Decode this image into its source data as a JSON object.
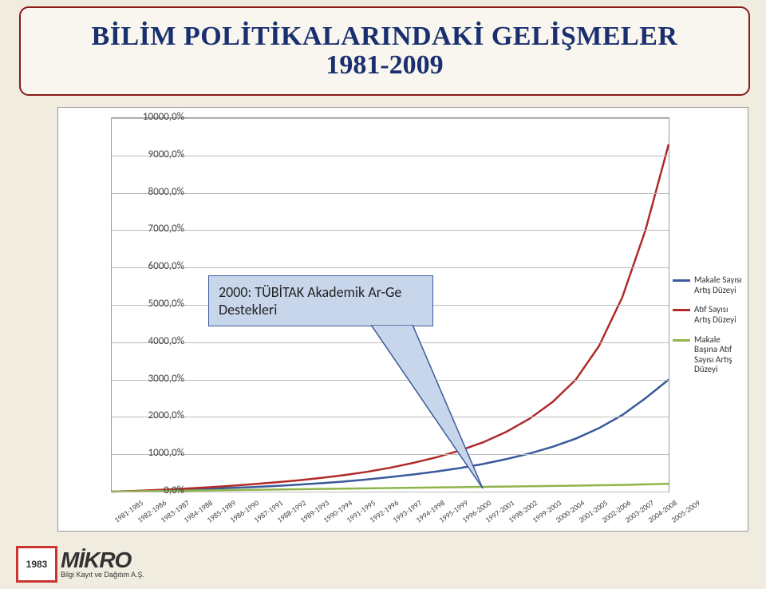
{
  "title": {
    "line1": "BİLİM POLİTİKALARINDAKİ GELİŞMELER",
    "line2": "1981-2009"
  },
  "chart": {
    "type": "line",
    "background_color": "#ffffff",
    "grid_color": "#bbbbbb",
    "plot_border_color": "#999999",
    "ylim": [
      0,
      10000
    ],
    "ytick_step": 1000,
    "y_suffix": ",0%",
    "y_labels": [
      "0,0%",
      "1000,0%",
      "2000,0%",
      "3000,0%",
      "4000,0%",
      "5000,0%",
      "6000,0%",
      "7000,0%",
      "8000,0%",
      "9000,0%",
      "10000,0%"
    ],
    "categories": [
      "1981-1985",
      "1982-1986",
      "1983-1987",
      "1984-1988",
      "1985-1989",
      "1986-1990",
      "1987-1991",
      "1988-1992",
      "1989-1993",
      "1990-1994",
      "1991-1995",
      "1992-1996",
      "1993-1997",
      "1994-1998",
      "1995-1999",
      "1996-2000",
      "1997-2001",
      "1998-2002",
      "1999-2003",
      "2000-2004",
      "2001-2005",
      "2002-2006",
      "2003-2007",
      "2004-2008",
      "2005-2009"
    ],
    "series": [
      {
        "name": "Makale Sayısı Artış Düzeyi",
        "color": "#3a5a9a",
        "line_width": 2.5,
        "values": [
          0,
          15,
          30,
          48,
          70,
          95,
          120,
          150,
          185,
          225,
          270,
          325,
          390,
          460,
          540,
          630,
          740,
          870,
          1020,
          1200,
          1420,
          1700,
          2050,
          2500,
          3000
        ]
      },
      {
        "name": "Atıf Sayısı Artış Düzeyi",
        "color": "#b02a2a",
        "line_width": 2.5,
        "values": [
          0,
          20,
          45,
          75,
          110,
          150,
          195,
          245,
          300,
          365,
          440,
          530,
          640,
          770,
          920,
          1100,
          1320,
          1600,
          1950,
          2400,
          3000,
          3900,
          5200,
          7000,
          9300
        ]
      },
      {
        "name": "Makale Başına Atıf Sayısı Artış Düzeyi",
        "color": "#8fb54a",
        "line_width": 2.5,
        "values": [
          0,
          8,
          16,
          24,
          32,
          40,
          48,
          56,
          64,
          72,
          80,
          88,
          96,
          104,
          112,
          120,
          128,
          136,
          144,
          152,
          160,
          170,
          180,
          195,
          210
        ]
      }
    ],
    "label_fontsize": 13,
    "xlabel_fontsize": 9.5,
    "legend_fontsize": 11
  },
  "callout": {
    "text": "2000: TÜBİTAK Akademik Ar-Ge Destekleri",
    "fill": "#c7d6eb",
    "border": "#3a5a9a"
  },
  "legend_items": [
    {
      "color": "#3a5a9a",
      "label": "Makale Sayısı Artış Düzeyi"
    },
    {
      "color": "#b02a2a",
      "label": "Atıf Sayısı Artış Düzeyi"
    },
    {
      "color": "#8fb54a",
      "label": "Makale Başına Atıf Sayısı Artış Düzeyi"
    }
  ],
  "logo": {
    "mark_year": "1983",
    "name": "MİKRO",
    "tagline": "Bilgi Kayıt ve Dağıtım A.Ş."
  }
}
